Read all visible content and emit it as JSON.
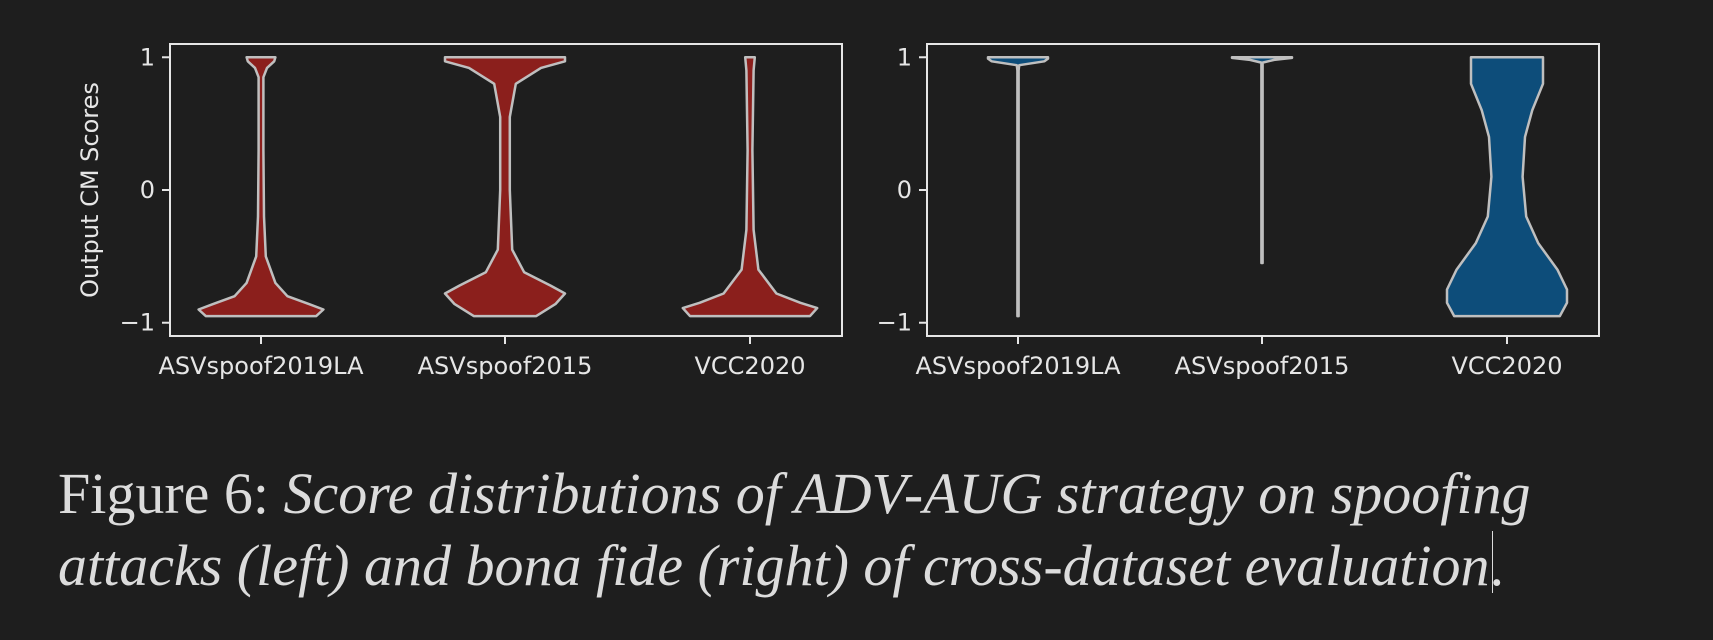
{
  "figure": {
    "caption_label": "Figure 6:",
    "caption_text": "Score distributions of ADV-AUG strategy on spoofing attacks (left) and bona fide (right) of cross-dataset evaluation",
    "caption_end": "."
  },
  "colors": {
    "background": "#1e1e1e",
    "axes": "#e6e6e6",
    "violin_edge": "#bfbfbf",
    "spoof_fill": "#8b1f1c",
    "bonafide_fill": "#0d4d7a"
  },
  "chart_data": [
    {
      "type": "violin",
      "panel": "left",
      "title": "",
      "ylabel": "Output CM Scores",
      "xlabel": "",
      "ylim": [
        -1.1,
        1.1
      ],
      "yticks": [
        -1,
        0,
        1
      ],
      "ytick_labels": [
        "−1",
        "0",
        "1"
      ],
      "categories": [
        "ASVspoof2019LA",
        "ASVspoof2015",
        "VCC2020"
      ],
      "fill_color": "#8b1f1c",
      "violins": [
        {
          "profile": [
            [
              -0.95,
              0.46
            ],
            [
              -0.9,
              0.52
            ],
            [
              -0.86,
              0.4
            ],
            [
              -0.8,
              0.22
            ],
            [
              -0.7,
              0.12
            ],
            [
              -0.5,
              0.04
            ],
            [
              -0.2,
              0.025
            ],
            [
              0.3,
              0.02
            ],
            [
              0.85,
              0.02
            ],
            [
              0.92,
              0.05
            ],
            [
              0.97,
              0.11
            ],
            [
              1.0,
              0.12
            ]
          ]
        },
        {
          "profile": [
            [
              -0.95,
              0.26
            ],
            [
              -0.86,
              0.42
            ],
            [
              -0.78,
              0.5
            ],
            [
              -0.72,
              0.38
            ],
            [
              -0.62,
              0.16
            ],
            [
              -0.45,
              0.06
            ],
            [
              0.0,
              0.04
            ],
            [
              0.55,
              0.04
            ],
            [
              0.8,
              0.09
            ],
            [
              0.92,
              0.3
            ],
            [
              0.97,
              0.5
            ],
            [
              1.0,
              0.5
            ]
          ]
        },
        {
          "profile": [
            [
              -0.95,
              0.5
            ],
            [
              -0.89,
              0.56
            ],
            [
              -0.85,
              0.42
            ],
            [
              -0.78,
              0.22
            ],
            [
              -0.6,
              0.07
            ],
            [
              -0.3,
              0.03
            ],
            [
              0.3,
              0.02
            ],
            [
              0.9,
              0.03
            ],
            [
              1.0,
              0.04
            ]
          ]
        }
      ]
    },
    {
      "type": "violin",
      "panel": "right",
      "title": "",
      "ylabel": "",
      "xlabel": "",
      "ylim": [
        -1.1,
        1.1
      ],
      "yticks": [
        -1,
        0,
        1
      ],
      "ytick_labels": [
        "−1",
        "0",
        "1"
      ],
      "categories": [
        "ASVspoof2019LA",
        "ASVspoof2015",
        "VCC2020"
      ],
      "fill_color": "#0d4d7a",
      "violins": [
        {
          "profile": [
            [
              -0.95,
              0.005
            ],
            [
              0.9,
              0.005
            ],
            [
              0.94,
              0.01
            ],
            [
              0.97,
              0.22
            ],
            [
              0.99,
              0.25
            ],
            [
              1.0,
              0.25
            ]
          ]
        },
        {
          "profile": [
            [
              -0.55,
              0.005
            ],
            [
              0.96,
              0.005
            ],
            [
              0.98,
              0.1
            ],
            [
              0.995,
              0.25
            ],
            [
              1.0,
              0.25
            ]
          ]
        },
        {
          "profile": [
            [
              -0.95,
              0.44
            ],
            [
              -0.85,
              0.5
            ],
            [
              -0.75,
              0.5
            ],
            [
              -0.6,
              0.42
            ],
            [
              -0.4,
              0.26
            ],
            [
              -0.2,
              0.16
            ],
            [
              0.1,
              0.13
            ],
            [
              0.4,
              0.15
            ],
            [
              0.6,
              0.21
            ],
            [
              0.8,
              0.3
            ],
            [
              0.9,
              0.3
            ],
            [
              1.0,
              0.3
            ]
          ]
        }
      ]
    }
  ]
}
